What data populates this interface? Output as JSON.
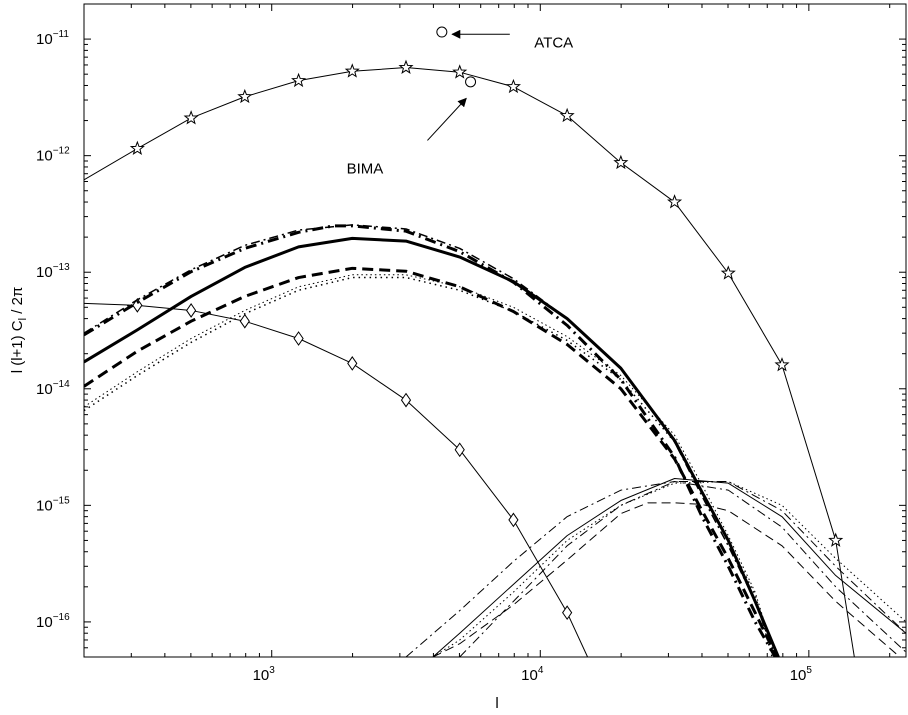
{
  "chart_data": {
    "type": "line",
    "title": "",
    "xlabel": "l",
    "ylabel_parts": {
      "l": "l (l+1) C",
      "sub": "l",
      "rest": " / 2π"
    },
    "xscale": "log",
    "yscale": "log",
    "xlim": [
      200,
      230000
    ],
    "ylim": [
      5e-17,
      2e-11
    ],
    "grid": false,
    "legend": "none",
    "x_ticks": [
      {
        "value": 1000,
        "base": "10",
        "exp": "3"
      },
      {
        "value": 10000,
        "base": "10",
        "exp": "4"
      },
      {
        "value": 100000,
        "base": "10",
        "exp": "5"
      }
    ],
    "y_ticks": [
      {
        "value": 1e-11,
        "base": "10",
        "exp": "−11"
      },
      {
        "value": 1e-12,
        "base": "10",
        "exp": "−12"
      },
      {
        "value": 1e-13,
        "base": "10",
        "exp": "−13"
      },
      {
        "value": 1e-14,
        "base": "10",
        "exp": "−14"
      },
      {
        "value": 1e-15,
        "base": "10",
        "exp": "−15"
      },
      {
        "value": 1e-16,
        "base": "10",
        "exp": "−16"
      }
    ],
    "series": [
      {
        "marker": "star",
        "line": "solid",
        "width": 1,
        "x": [
          200,
          316,
          501,
          794,
          1259,
          1995,
          3162,
          5012,
          7943,
          12589,
          19953,
          31623,
          50119,
          79433,
          125893,
          150000
        ],
        "y": [
          6.2e-13,
          1.15e-12,
          2.1e-12,
          3.2e-12,
          4.4e-12,
          5.3e-12,
          5.7e-12,
          5.2e-12,
          3.9e-12,
          2.2e-12,
          8.7e-13,
          4e-13,
          9.8e-14,
          1.6e-14,
          5e-16,
          4e-17
        ]
      },
      {
        "marker": "diamond",
        "line": "solid",
        "width": 1,
        "x": [
          200,
          316,
          501,
          794,
          1259,
          1995,
          3162,
          5012,
          7943,
          12589,
          15000
        ],
        "y": [
          5.4e-14,
          5.2e-14,
          4.7e-14,
          3.8e-14,
          2.7e-14,
          1.65e-14,
          8e-15,
          3e-15,
          7.5e-16,
          1.2e-16,
          5e-17
        ]
      },
      {
        "marker": "none",
        "line": "solid",
        "width": 3,
        "x": [
          200,
          316,
          501,
          794,
          1259,
          1995,
          3162,
          5012,
          7943,
          12589,
          19953,
          31623,
          40000,
          50119,
          63096,
          77000
        ],
        "y": [
          1.7e-14,
          3.2e-14,
          6.2e-14,
          1.1e-13,
          1.65e-13,
          1.95e-13,
          1.85e-13,
          1.35e-13,
          8.3e-14,
          4e-14,
          1.5e-14,
          3.6e-15,
          1.3e-15,
          5e-16,
          1.5e-16,
          5e-17
        ]
      },
      {
        "marker": "none",
        "line": "dashdot",
        "width": 3,
        "x": [
          200,
          316,
          501,
          794,
          1259,
          1700,
          1995,
          3162,
          5012,
          7943,
          12589,
          19953,
          31623,
          40000,
          50119,
          63096,
          75000
        ],
        "y": [
          2.9e-14,
          5.5e-14,
          1.01e-13,
          1.6e-13,
          2.2e-13,
          2.5e-13,
          2.5e-13,
          2.25e-13,
          1.5e-13,
          8.2e-14,
          3.5e-14,
          1.2e-14,
          2.6e-15,
          8e-16,
          3e-16,
          1e-16,
          5e-17
        ]
      },
      {
        "marker": "none",
        "line": "dashed",
        "width": 3,
        "x": [
          200,
          316,
          501,
          794,
          1259,
          1995,
          3162,
          5012,
          7943,
          12589,
          19953,
          31623,
          40000,
          50119,
          63096,
          76000
        ],
        "y": [
          1.05e-14,
          2.1e-14,
          3.8e-14,
          6.2e-14,
          9e-14,
          1.08e-13,
          1.02e-13,
          7.5e-14,
          4.6e-14,
          2.4e-14,
          1e-14,
          2.5e-15,
          9e-16,
          3.5e-16,
          1.2e-16,
          5e-17
        ]
      },
      {
        "marker": "none",
        "line": "dotted",
        "width": 1.5,
        "x": [
          200,
          316,
          501,
          794,
          1259,
          1995,
          3162,
          5012,
          7943,
          12589,
          19953,
          31623,
          40000,
          50119,
          63096,
          73000
        ],
        "y": [
          6.5e-15,
          1.3e-14,
          2.5e-14,
          4.4e-14,
          7e-14,
          9e-14,
          9e-14,
          7e-14,
          4.6e-14,
          2.6e-14,
          1.2e-14,
          3.5e-15,
          1.3e-15,
          5e-16,
          1.7e-16,
          5e-17
        ]
      },
      {
        "marker": "none",
        "line": "dashdot",
        "width": 1.5,
        "x": [
          200,
          316,
          501,
          794,
          1259,
          1995,
          3162,
          5012,
          7943,
          12589,
          19953,
          31623,
          40000,
          50119,
          63096,
          75000
        ],
        "y": [
          3e-14,
          5.8e-14,
          1.05e-13,
          1.7e-13,
          2.3e-13,
          2.55e-13,
          2.35e-13,
          1.6e-13,
          8.8e-14,
          4e-14,
          1.5e-14,
          3.5e-15,
          1.2e-15,
          4.5e-16,
          1.5e-16,
          5e-17
        ]
      },
      {
        "marker": "none",
        "line": "dotted",
        "width": 1,
        "x": [
          200,
          316,
          501,
          794,
          1259,
          1995,
          3162,
          5012,
          7943,
          12589,
          19953,
          31623,
          40000,
          50119,
          63096,
          75000
        ],
        "y": [
          7e-15,
          1.4e-14,
          2.7e-14,
          4.7e-14,
          7.5e-14,
          9.5e-14,
          9.5e-14,
          7.5e-14,
          5e-14,
          2.8e-14,
          1.3e-14,
          4e-15,
          1.5e-15,
          5.5e-16,
          1.8e-16,
          5e-17
        ]
      },
      {
        "marker": "none",
        "line": "solid",
        "width": 1,
        "x": [
          3981,
          5012,
          7943,
          12589,
          19953,
          31623,
          50119,
          79433,
          125893,
          230000
        ],
        "y": [
          5e-17,
          8e-17,
          2.1e-16,
          5.5e-16,
          1.1e-15,
          1.7e-15,
          1.55e-15,
          8e-16,
          2.5e-16,
          8e-17
        ]
      },
      {
        "marker": "none",
        "line": "dashed",
        "width": 1,
        "x": [
          3981,
          5012,
          7943,
          12589,
          19953,
          25119,
          31623,
          39811,
          50119,
          79433,
          125893,
          230000
        ],
        "y": [
          5e-17,
          6.5e-17,
          1.4e-16,
          3.4e-16,
          8.5e-16,
          1.05e-15,
          1.05e-15,
          1.02e-15,
          9e-16,
          4.5e-16,
          1.5e-16,
          4.5e-17
        ]
      },
      {
        "marker": "none",
        "line": "dashdot",
        "width": 1,
        "x": [
          3162,
          5012,
          7943,
          12589,
          19953,
          31623,
          50119,
          79433,
          125893,
          230000
        ],
        "y": [
          5e-17,
          1.25e-16,
          3.3e-16,
          8e-16,
          1.35e-15,
          1.6e-15,
          1.35e-15,
          6.5e-16,
          2e-16,
          5.5e-17
        ]
      },
      {
        "marker": "none",
        "line": "dotted",
        "width": 1,
        "x": [
          3981,
          5012,
          7943,
          12589,
          19953,
          31623,
          50119,
          79433,
          125893,
          230000
        ],
        "y": [
          5e-17,
          7e-17,
          1.8e-16,
          5e-16,
          1e-15,
          1.55e-15,
          1.6e-15,
          1e-15,
          3.5e-16,
          1e-16
        ]
      },
      {
        "marker": "none",
        "line": "dashdot",
        "width": 1,
        "x": [
          5012,
          7943,
          12589,
          19953,
          31623,
          50119,
          79433,
          125893,
          230000
        ],
        "y": [
          5e-17,
          1.5e-16,
          4.5e-16,
          1e-15,
          1.6e-15,
          1.6e-15,
          9e-16,
          3e-16,
          8e-17
        ]
      }
    ],
    "points": [
      {
        "label": "ATCA",
        "x": 4300,
        "y": 1.15e-11
      },
      {
        "label": "BIMA",
        "x": 5500,
        "y": 4.3e-12
      }
    ],
    "annotations": [
      {
        "text": "ATCA",
        "x": 9500,
        "y": 8.5e-12,
        "arrow_from": [
          7700,
          1.1e-11
        ],
        "arrow_to": [
          4700,
          1.1e-11
        ]
      },
      {
        "text": "BIMA",
        "x": 1900,
        "y": 7e-13,
        "arrow_from": [
          3800,
          1.35e-12
        ],
        "arrow_to": [
          5300,
          3.1e-12
        ]
      }
    ]
  }
}
